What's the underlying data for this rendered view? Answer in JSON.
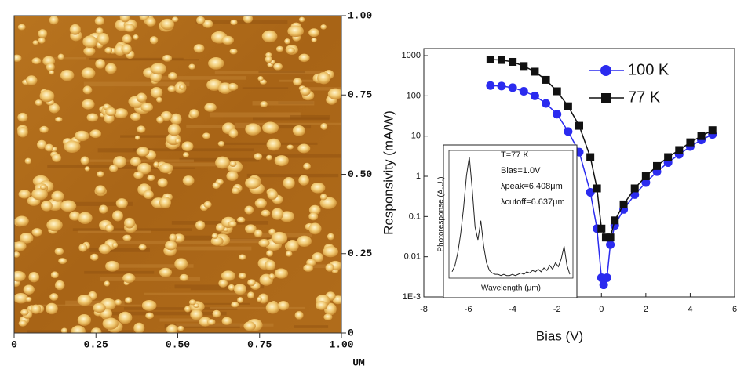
{
  "afm_image": {
    "xticks": [
      0,
      0.25,
      {
        "value": 0.5,
        "label": "0.50"
      },
      0.75,
      {
        "value": 1,
        "label": "1.00"
      }
    ],
    "yticks": [
      0,
      0.25,
      {
        "value": 0.5,
        "label": "0.50"
      },
      0.75,
      {
        "value": 1,
        "label": "1.00"
      }
    ],
    "xlim": [
      0,
      1
    ],
    "ylim": [
      0,
      1
    ],
    "unit": "UM"
  },
  "chart_data": {
    "type": "line",
    "xlabel": "Bias (V)",
    "ylabel": "Responsivity (mA/W)",
    "xlim": [
      -8,
      6
    ],
    "xticks": [
      -8,
      -6,
      -4,
      -2,
      0,
      2,
      4,
      6
    ],
    "ylim": [
      0.001,
      1500
    ],
    "log_y": true,
    "yticks": [
      {
        "value": 0.001,
        "label": "1E-3"
      },
      0.01,
      0.1,
      1,
      10,
      100,
      1000
    ],
    "legend": "top-right",
    "series": [
      {
        "name": "100 K",
        "color": "#2b2bef",
        "marker": "circle",
        "x": [
          -5,
          -4.5,
          -4,
          -3.5,
          -3,
          -2.5,
          -2,
          -1.5,
          -1,
          -0.5,
          -0.2,
          0,
          0.1,
          0.25,
          0.4,
          0.6,
          1,
          1.5,
          2,
          2.5,
          3,
          3.5,
          4,
          4.5,
          5
        ],
        "values": [
          180,
          175,
          160,
          130,
          100,
          65,
          35,
          13,
          4,
          0.4,
          0.05,
          0.003,
          0.002,
          0.003,
          0.02,
          0.06,
          0.15,
          0.35,
          0.7,
          1.3,
          2.2,
          3.5,
          5.5,
          8,
          11
        ]
      },
      {
        "name": "77 K",
        "color": "#111111",
        "marker": "square",
        "x": [
          -5,
          -4.5,
          -4,
          -3.5,
          -3,
          -2.5,
          -2,
          -1.5,
          -1,
          -0.5,
          -0.2,
          0,
          0.2,
          0.4,
          0.6,
          1,
          1.5,
          2,
          2.5,
          3,
          3.5,
          4,
          4.5,
          5
        ],
        "values": [
          800,
          780,
          700,
          550,
          400,
          250,
          130,
          55,
          18,
          3,
          0.5,
          0.05,
          0.03,
          0.03,
          0.08,
          0.2,
          0.5,
          1,
          1.8,
          3,
          4.5,
          7,
          10,
          14
        ]
      }
    ],
    "inset": {
      "type": "line",
      "color": "#222222",
      "ylim": [
        0,
        1
      ],
      "xlabel": "Wavelength (μm)",
      "ylabel": "Photoresponse (A.U.)",
      "annotations": [
        "T=77 K",
        "Bias=1.0V",
        "λpeak=6.408μm",
        "λcutoff=6.637μm"
      ],
      "values": [
        0.05,
        0.1,
        0.2,
        0.35,
        0.55,
        0.8,
        0.95,
        0.7,
        0.4,
        0.3,
        0.45,
        0.25,
        0.12,
        0.06,
        0.04,
        0.03,
        0.03,
        0.02,
        0.03,
        0.02,
        0.02,
        0.03,
        0.02,
        0.03,
        0.04,
        0.03,
        0.05,
        0.04,
        0.06,
        0.05,
        0.07,
        0.05,
        0.08,
        0.06,
        0.1,
        0.07,
        0.12,
        0.09,
        0.15,
        0.25,
        0.1,
        0.03
      ]
    }
  }
}
